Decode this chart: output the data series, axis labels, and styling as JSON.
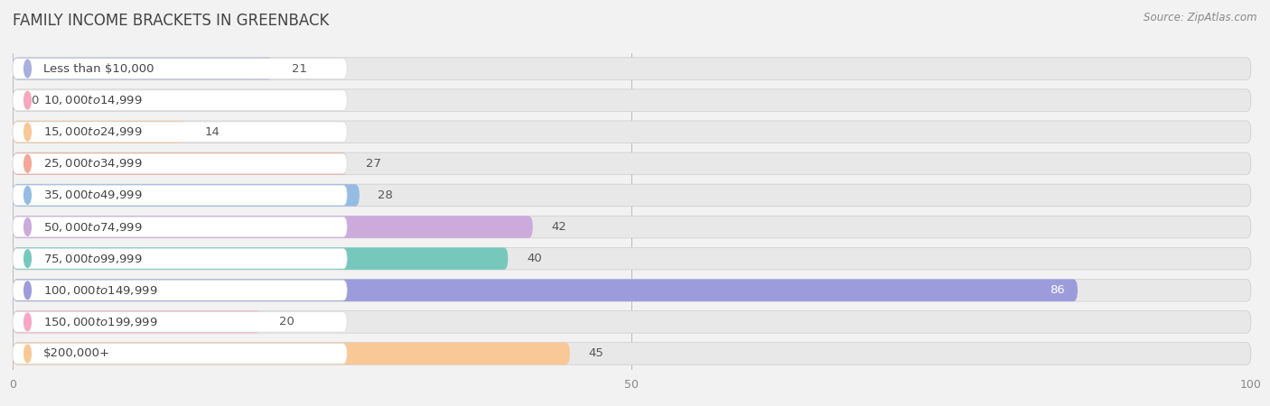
{
  "title": "FAMILY INCOME BRACKETS IN GREENBACK",
  "source": "Source: ZipAtlas.com",
  "categories": [
    "Less than $10,000",
    "$10,000 to $14,999",
    "$15,000 to $24,999",
    "$25,000 to $34,999",
    "$35,000 to $49,999",
    "$50,000 to $74,999",
    "$75,000 to $99,999",
    "$100,000 to $149,999",
    "$150,000 to $199,999",
    "$200,000+"
  ],
  "values": [
    21,
    0,
    14,
    27,
    28,
    42,
    40,
    86,
    20,
    45
  ],
  "bar_colors": [
    "#a8aedd",
    "#f5a8bc",
    "#f8c896",
    "#f2a898",
    "#96bce4",
    "#ccaadc",
    "#76c8bc",
    "#9c9cdc",
    "#f8a8c4",
    "#f8c896"
  ],
  "xlim": [
    0,
    100
  ],
  "bg_color": "#f2f2f2",
  "row_bg_color": "#e8e8e8",
  "label_bg_color": "#ffffff",
  "title_color": "#555555",
  "label_color": "#555555",
  "value_color_outside": "#555555",
  "value_color_inside": "#ffffff",
  "title_fontsize": 12,
  "label_fontsize": 9.5,
  "value_fontsize": 9.5,
  "source_fontsize": 8.5,
  "bar_height": 0.7,
  "n_bars": 10
}
